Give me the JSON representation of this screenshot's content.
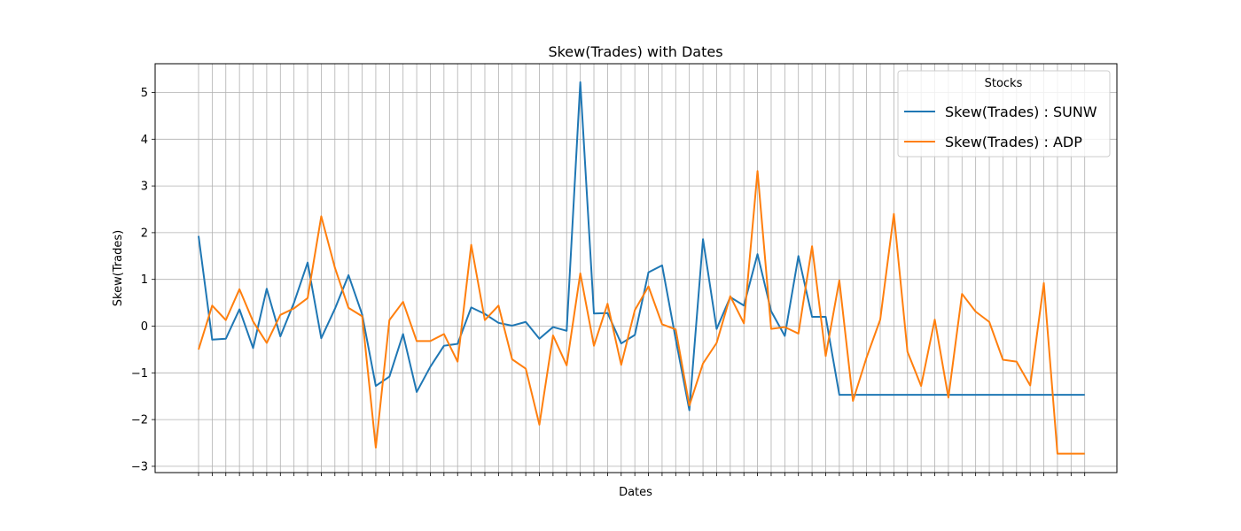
{
  "chart_data": {
    "type": "line",
    "title": "Skew(Trades) with Dates",
    "xlabel": "Dates",
    "ylabel": "Skew(Trades)",
    "ylim": [
      -3.1,
      5.6
    ],
    "yticks": [
      -3,
      -2,
      -1,
      0,
      1,
      2,
      3,
      4,
      5
    ],
    "ytick_labels": [
      "−3",
      "−2",
      "−1",
      "0",
      "1",
      "2",
      "3",
      "4",
      "5"
    ],
    "x_count": 66,
    "grid": true,
    "legend": {
      "title": "Stocks",
      "placement": "upper-right"
    },
    "series": [
      {
        "name": "Skew(Trades) : SUNW",
        "color": "#1f77b4",
        "values": [
          1.93,
          -0.29,
          -0.27,
          0.36,
          -0.47,
          0.8,
          -0.22,
          0.5,
          1.36,
          -0.26,
          0.37,
          1.09,
          0.25,
          -1.28,
          -1.08,
          -0.17,
          -1.41,
          -0.87,
          -0.42,
          -0.38,
          0.4,
          0.26,
          0.07,
          0.01,
          0.09,
          -0.27,
          -0.02,
          -0.1,
          5.22,
          0.27,
          0.28,
          -0.37,
          -0.19,
          1.15,
          1.3,
          -0.28,
          -1.8,
          1.86,
          -0.06,
          0.62,
          0.44,
          1.54,
          0.32,
          -0.21,
          1.5,
          0.2,
          0.2,
          -1.47,
          -1.47,
          -1.47,
          -1.47,
          -1.47,
          -1.47,
          -1.47,
          -1.47,
          -1.47,
          -1.47,
          -1.47,
          -1.47,
          -1.47,
          -1.47,
          -1.47,
          -1.47,
          -1.47,
          -1.47,
          -1.47
        ]
      },
      {
        "name": "Skew(Trades) : ADP",
        "color": "#ff7f0e",
        "values": [
          -0.5,
          0.44,
          0.13,
          0.79,
          0.1,
          -0.36,
          0.24,
          0.38,
          0.6,
          2.35,
          1.25,
          0.39,
          0.21,
          -2.6,
          0.13,
          0.52,
          -0.32,
          -0.32,
          -0.17,
          -0.76,
          1.74,
          0.13,
          0.44,
          -0.71,
          -0.91,
          -2.11,
          -0.2,
          -0.84,
          1.13,
          -0.42,
          0.48,
          -0.83,
          0.34,
          0.85,
          0.04,
          -0.07,
          -1.7,
          -0.8,
          -0.36,
          0.64,
          0.06,
          3.32,
          -0.06,
          -0.02,
          -0.16,
          1.71,
          -0.64,
          0.98,
          -1.6,
          -0.67,
          0.14,
          2.4,
          -0.55,
          -1.28,
          0.14,
          -1.53,
          0.69,
          0.31,
          0.09,
          -0.72,
          -0.76,
          -1.27,
          0.92,
          -2.73,
          -2.73,
          -2.73
        ]
      }
    ]
  }
}
